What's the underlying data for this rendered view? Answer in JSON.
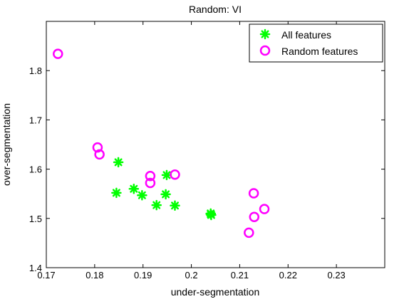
{
  "chart_data": {
    "type": "scatter",
    "title": "Random: VI",
    "xlabel": "under-segmentation",
    "ylabel": "over-segmentation",
    "xlim": [
      0.17,
      0.24
    ],
    "ylim": [
      1.4,
      1.9
    ],
    "xticks": [
      0.17,
      0.18,
      0.19,
      0.2,
      0.21,
      0.22,
      0.23
    ],
    "xtick_labels": [
      "0.17",
      "0.18",
      "0.19",
      "0.2",
      "0.21",
      "0.22",
      "0.23"
    ],
    "yticks": [
      1.4,
      1.5,
      1.6,
      1.7,
      1.8
    ],
    "ytick_labels": [
      "1.4",
      "1.5",
      "1.6",
      "1.7",
      "1.8"
    ],
    "grid": false,
    "legend_position": "top-right",
    "series": [
      {
        "name": "All features",
        "marker": "asterisk",
        "color": "#00ff00",
        "points": [
          [
            0.1849,
            1.614
          ],
          [
            0.1845,
            1.552
          ],
          [
            0.1881,
            1.56
          ],
          [
            0.1898,
            1.547
          ],
          [
            0.1928,
            1.527
          ],
          [
            0.1947,
            1.549
          ],
          [
            0.1949,
            1.588
          ],
          [
            0.1966,
            1.526
          ],
          [
            0.204,
            1.509
          ],
          [
            0.204,
            1.51
          ],
          [
            0.2041,
            1.507
          ]
        ]
      },
      {
        "name": "Random features",
        "marker": "circle",
        "color": "#ff00ff",
        "points": [
          [
            0.1724,
            1.834
          ],
          [
            0.1806,
            1.644
          ],
          [
            0.181,
            1.63
          ],
          [
            0.1915,
            1.586
          ],
          [
            0.1915,
            1.572
          ],
          [
            0.1966,
            1.589
          ],
          [
            0.2129,
            1.551
          ],
          [
            0.213,
            1.503
          ],
          [
            0.2151,
            1.519
          ],
          [
            0.2119,
            1.471
          ]
        ]
      }
    ]
  }
}
